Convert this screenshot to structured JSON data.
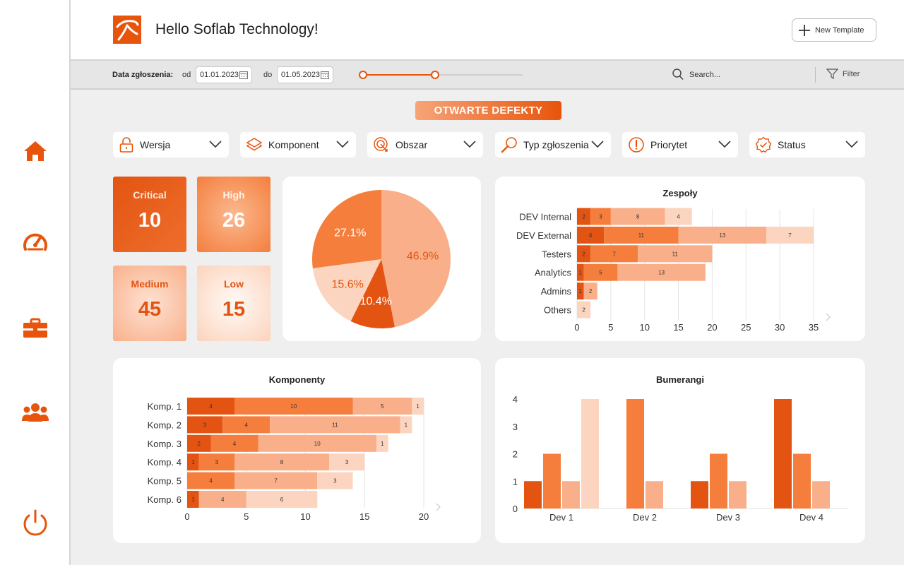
{
  "header": {
    "greeting": "Hello Soflab Technology!",
    "new_template_label": "New Template"
  },
  "sidebar": {
    "items": [
      {
        "icon": "home-icon"
      },
      {
        "icon": "speedometer-icon"
      },
      {
        "icon": "briefcase-icon"
      },
      {
        "icon": "users-icon"
      },
      {
        "icon": "power-icon"
      }
    ]
  },
  "filter_bar": {
    "label": "Data zgłoszenia:",
    "from_label": "od",
    "from_date": "01.01.2023",
    "to_label": "do",
    "to_date": "01.05.2023",
    "range_fraction": [
      0.0,
      0.45
    ],
    "search_placeholder": "Search...",
    "filter_label": "Filter"
  },
  "page_title": "OTWARTE DEFEKTY",
  "dropdowns": [
    {
      "label": "Wersja",
      "icon": "lock-icon"
    },
    {
      "label": "Komponent",
      "icon": "layers-icon"
    },
    {
      "label": "Obszar",
      "icon": "target-icon"
    },
    {
      "label": "Typ zgłoszenia",
      "icon": "magnifier-icon"
    },
    {
      "label": "Priorytet",
      "icon": "alert-icon"
    },
    {
      "label": "Status",
      "icon": "badge-check-icon"
    }
  ],
  "kpis": [
    {
      "label": "Critical",
      "value": "10"
    },
    {
      "label": "High",
      "value": "26"
    },
    {
      "label": "Medium",
      "value": "45"
    },
    {
      "label": "Low",
      "value": "15"
    }
  ],
  "colors": {
    "accent": "#e8540c",
    "critical": "#e35412",
    "high": "#f57e3c",
    "medium": "#f9b08a",
    "low": "#fcd5c0"
  },
  "chart_data": [
    {
      "type": "pie",
      "slices": [
        {
          "label": "46.9%",
          "value": 46.9,
          "color": "#f9b08a"
        },
        {
          "label": "10.4%",
          "value": 10.4,
          "color": "#e35412"
        },
        {
          "label": "15.6%",
          "value": 15.6,
          "color": "#fcd5c0"
        },
        {
          "label": "27.1%",
          "value": 27.1,
          "color": "#f57e3c"
        }
      ]
    },
    {
      "type": "bar",
      "orientation": "horizontal",
      "stacked": true,
      "title": "Zespoły",
      "categories": [
        "DEV Internal",
        "DEV External",
        "Testers",
        "Analytics",
        "Admins",
        "Others"
      ],
      "series": [
        {
          "values": [
            2,
            4,
            2,
            1,
            1,
            0
          ],
          "color": "#e35412"
        },
        {
          "values": [
            3,
            11,
            7,
            5,
            0,
            0
          ],
          "color": "#f57e3c"
        },
        {
          "values": [
            8,
            13,
            11,
            13,
            2,
            0
          ],
          "color": "#f9b08a"
        },
        {
          "values": [
            4,
            7,
            0,
            0,
            0,
            2
          ],
          "color": "#fcd5c0"
        }
      ],
      "xticks": [
        0,
        5,
        10,
        15,
        20,
        25,
        30,
        35
      ],
      "xlim": [
        0,
        35
      ]
    },
    {
      "type": "bar",
      "orientation": "horizontal",
      "stacked": true,
      "title": "Komponenty",
      "categories": [
        "Komp. 1",
        "Komp. 2",
        "Komp. 3",
        "Komp. 4",
        "Komp. 5",
        "Komp. 6"
      ],
      "series": [
        {
          "values": [
            4,
            3,
            2,
            1,
            0,
            1
          ],
          "color": "#e35412"
        },
        {
          "values": [
            10,
            4,
            4,
            3,
            4,
            0
          ],
          "color": "#f57e3c"
        },
        {
          "values": [
            5,
            11,
            10,
            8,
            7,
            4
          ],
          "color": "#f9b08a"
        },
        {
          "values": [
            1,
            1,
            1,
            3,
            3,
            6
          ],
          "color": "#fcd5c0"
        }
      ],
      "xticks": [
        0,
        5,
        10,
        15,
        20
      ],
      "xlim": [
        0,
        20
      ]
    },
    {
      "type": "bar",
      "orientation": "vertical",
      "stacked": false,
      "title": "Bumerangi",
      "categories": [
        "Dev 1",
        "Dev 2",
        "Dev 3",
        "Dev 4"
      ],
      "series": [
        {
          "values": [
            1,
            0,
            1,
            4
          ],
          "color": "#e35412"
        },
        {
          "values": [
            2,
            4,
            2,
            2
          ],
          "color": "#f57e3c"
        },
        {
          "values": [
            1,
            1,
            1,
            1
          ],
          "color": "#f9b08a"
        },
        {
          "values": [
            4,
            0,
            0,
            0
          ],
          "color": "#fcd5c0"
        }
      ],
      "yticks": [
        0,
        1,
        2,
        3,
        4
      ],
      "ylim": [
        0,
        4
      ]
    }
  ]
}
